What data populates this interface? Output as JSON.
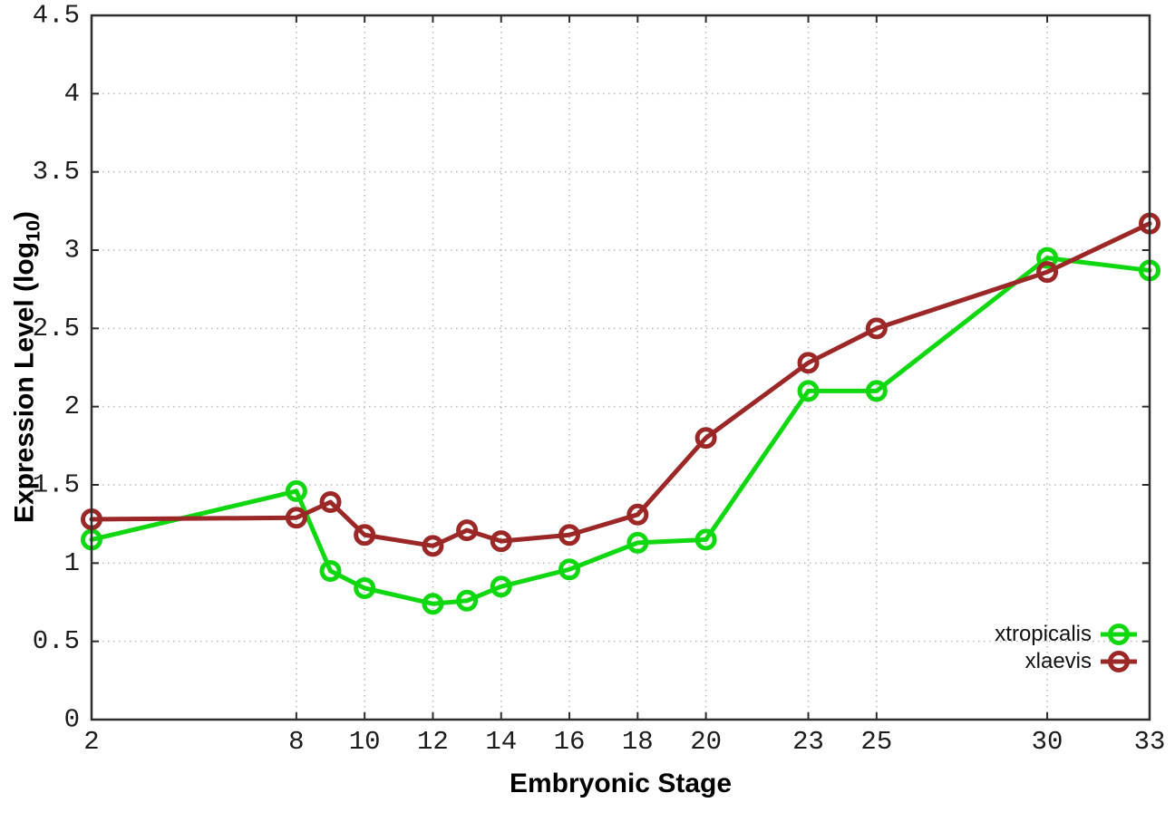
{
  "figure": {
    "x_title": "Embryonic Stage",
    "y_title_prefix": "Expression Level (log",
    "y_title_sub": "10",
    "y_title_suffix": ")",
    "background": "#ffffff"
  },
  "style": {
    "axis_color": "#2d2d2d",
    "grid_color": "#b9b9b9",
    "tick_label_color": "#1c1c1c",
    "line_width": 5,
    "marker_radius": 9.5,
    "marker_stroke": 5
  },
  "chart_data": {
    "type": "line",
    "title": "",
    "xlabel": "Embryonic Stage",
    "ylabel": "Expression Level (log10)",
    "xlim": [
      2,
      33
    ],
    "ylim": [
      0,
      4.5
    ],
    "grid": true,
    "legend_position": "inside-bottom-right",
    "marker": "open-circle",
    "xticks": [
      "2",
      "8",
      "10",
      "12",
      "14",
      "16",
      "18",
      "20",
      "23",
      "25",
      "30",
      "33"
    ],
    "yticks": [
      "0",
      "0.5",
      "1",
      "1.5",
      "2",
      "2.5",
      "3",
      "3.5",
      "4",
      "4.5"
    ],
    "x": [
      2,
      8,
      9,
      10,
      12,
      13,
      14,
      16,
      18,
      20,
      23,
      25,
      30,
      33
    ],
    "series": [
      {
        "name": "xtropicalis",
        "color": "#10d810",
        "values": [
          1.15,
          1.46,
          0.95,
          0.84,
          0.74,
          0.76,
          0.85,
          0.96,
          1.13,
          1.15,
          2.1,
          2.1,
          2.95,
          2.87
        ]
      },
      {
        "name": "xlaevis",
        "color": "#9c2727",
        "values": [
          1.28,
          1.29,
          1.39,
          1.18,
          1.11,
          1.21,
          1.14,
          1.18,
          1.31,
          1.8,
          2.28,
          2.5,
          2.86,
          3.17
        ]
      }
    ]
  }
}
